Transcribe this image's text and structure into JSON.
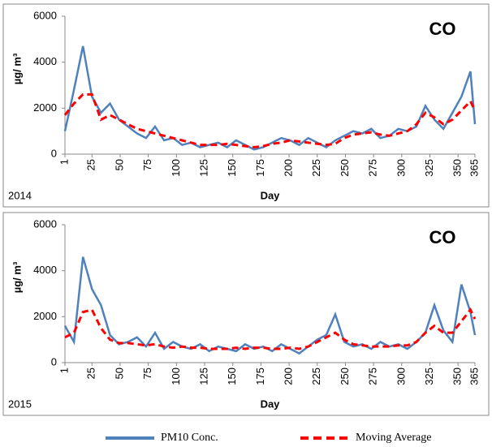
{
  "chart_data": [
    {
      "type": "line",
      "annotation": "CO",
      "year": "2014",
      "xlabel": "Day",
      "ylabel": "µg/ m³",
      "xlim": [
        1,
        365
      ],
      "xticks": [
        1,
        25,
        50,
        75,
        100,
        125,
        150,
        175,
        200,
        225,
        250,
        275,
        300,
        325,
        350,
        365
      ],
      "ylim": [
        0,
        6000
      ],
      "yticks": [
        0,
        2000,
        4000,
        6000
      ],
      "grid": false,
      "x": [
        1,
        9,
        17,
        25,
        33,
        41,
        49,
        57,
        65,
        73,
        81,
        89,
        97,
        105,
        113,
        121,
        129,
        137,
        145,
        153,
        161,
        169,
        177,
        185,
        193,
        201,
        209,
        217,
        225,
        233,
        241,
        249,
        257,
        265,
        273,
        281,
        289,
        297,
        305,
        313,
        321,
        329,
        337,
        345,
        353,
        361,
        365
      ],
      "series": [
        {
          "name": "PM10 Conc.",
          "color": "#4f81bd",
          "dash": false,
          "values": [
            1000,
            2800,
            4700,
            2500,
            1800,
            2200,
            1500,
            1200,
            900,
            700,
            1200,
            600,
            700,
            400,
            500,
            300,
            400,
            500,
            300,
            600,
            400,
            200,
            300,
            500,
            700,
            600,
            400,
            700,
            500,
            300,
            600,
            800,
            1000,
            900,
            1100,
            700,
            800,
            1100,
            1000,
            1200,
            2100,
            1500,
            1100,
            1800,
            2500,
            3600,
            1300
          ]
        },
        {
          "name": "Moving Average",
          "color": "#ff0000",
          "dash": true,
          "values": [
            1700,
            2200,
            2600,
            2600,
            1500,
            1700,
            1500,
            1300,
            1100,
            1000,
            900,
            800,
            700,
            600,
            500,
            400,
            400,
            400,
            450,
            400,
            350,
            300,
            350,
            450,
            500,
            600,
            550,
            500,
            450,
            400,
            450,
            700,
            850,
            900,
            950,
            850,
            800,
            900,
            1000,
            1300,
            1800,
            1600,
            1300,
            1500,
            1900,
            2300,
            1900
          ]
        }
      ]
    },
    {
      "type": "line",
      "annotation": "CO",
      "year": "2015",
      "xlabel": "Day",
      "ylabel": "µg/ m³",
      "xlim": [
        1,
        365
      ],
      "xticks": [
        1,
        25,
        50,
        75,
        100,
        125,
        150,
        175,
        200,
        225,
        250,
        275,
        300,
        325,
        350,
        365
      ],
      "ylim": [
        0,
        6000
      ],
      "yticks": [
        0,
        2000,
        4000,
        6000
      ],
      "grid": false,
      "x": [
        1,
        9,
        17,
        25,
        33,
        41,
        49,
        57,
        65,
        73,
        81,
        89,
        97,
        105,
        113,
        121,
        129,
        137,
        145,
        153,
        161,
        169,
        177,
        185,
        193,
        201,
        209,
        217,
        225,
        233,
        241,
        249,
        257,
        265,
        273,
        281,
        289,
        297,
        305,
        313,
        321,
        329,
        337,
        345,
        353,
        361,
        365
      ],
      "series": [
        {
          "color": "#4f81bd",
          "dash": false,
          "values": [
            1600,
            900,
            4600,
            3200,
            2500,
            1200,
            800,
            900,
            1100,
            700,
            1300,
            600,
            900,
            700,
            600,
            800,
            500,
            700,
            600,
            500,
            800,
            600,
            700,
            500,
            800,
            600,
            400,
            700,
            1000,
            1200,
            2100,
            900,
            700,
            800,
            600,
            900,
            700,
            800,
            600,
            900,
            1300,
            2500,
            1400,
            900,
            3400,
            2200,
            1200
          ]
        },
        {
          "color": "#ff0000",
          "dash": true,
          "values": [
            1100,
            1300,
            2200,
            2300,
            1500,
            1000,
            850,
            850,
            800,
            750,
            800,
            700,
            650,
            700,
            650,
            650,
            600,
            600,
            600,
            650,
            600,
            650,
            650,
            600,
            600,
            650,
            600,
            700,
            900,
            1100,
            1300,
            1000,
            800,
            750,
            700,
            700,
            700,
            750,
            750,
            900,
            1300,
            1600,
            1300,
            1300,
            1800,
            2300,
            1900
          ]
        }
      ]
    }
  ]
}
